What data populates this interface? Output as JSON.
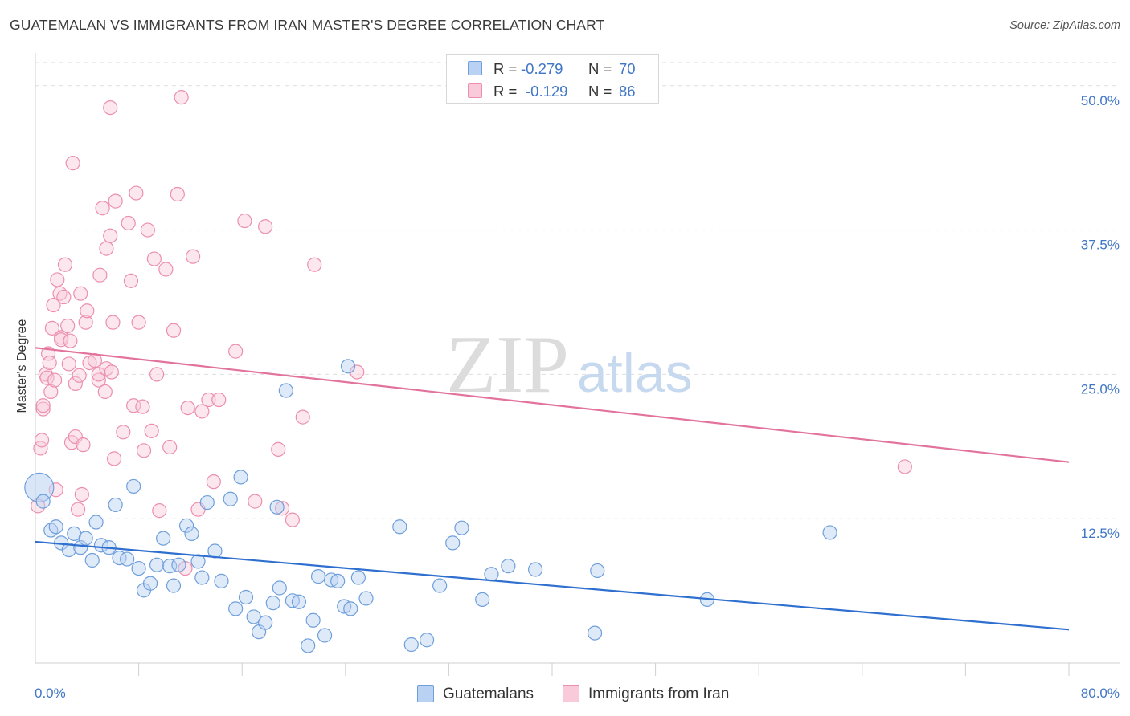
{
  "chart_data": {
    "type": "scatter",
    "title": "GUATEMALAN VS IMMIGRANTS FROM IRAN MASTER'S DEGREE CORRELATION CHART",
    "source": "Source: ZipAtlas.com",
    "xlabel": "",
    "ylabel": "Master's Degree",
    "xlim": [
      0,
      80
    ],
    "ylim": [
      0,
      52
    ],
    "x_tick_labels": [
      "0.0%",
      "80.0%"
    ],
    "y_ticks": [
      12.5,
      25.0,
      37.5,
      50.0
    ],
    "y_tick_labels": [
      "12.5%",
      "25.0%",
      "37.5%",
      "50.0%"
    ],
    "watermark": "ZIPatlas",
    "series": [
      {
        "name": "Guatemalans",
        "color": "#6f9fdb",
        "fill": "#b9d1f2",
        "R": "-0.279",
        "N": "70",
        "trend": {
          "x": [
            0,
            80
          ],
          "y": [
            10.5,
            2.9
          ]
        },
        "points": [
          [
            0.3,
            15.2
          ],
          [
            0.6,
            14.0
          ],
          [
            1.2,
            11.5
          ],
          [
            1.6,
            11.8
          ],
          [
            2.0,
            10.4
          ],
          [
            2.6,
            9.8
          ],
          [
            3.0,
            11.2
          ],
          [
            3.5,
            10.0
          ],
          [
            3.9,
            10.8
          ],
          [
            4.4,
            8.9
          ],
          [
            4.7,
            12.2
          ],
          [
            5.1,
            10.2
          ],
          [
            5.7,
            10.0
          ],
          [
            6.2,
            13.7
          ],
          [
            6.5,
            9.1
          ],
          [
            7.1,
            9.0
          ],
          [
            7.6,
            15.3
          ],
          [
            8.0,
            8.2
          ],
          [
            8.4,
            6.3
          ],
          [
            8.9,
            6.9
          ],
          [
            9.4,
            8.5
          ],
          [
            9.9,
            10.8
          ],
          [
            10.4,
            8.4
          ],
          [
            10.7,
            6.7
          ],
          [
            11.1,
            8.5
          ],
          [
            11.7,
            11.9
          ],
          [
            12.1,
            11.2
          ],
          [
            12.6,
            8.8
          ],
          [
            12.9,
            7.4
          ],
          [
            13.3,
            13.9
          ],
          [
            13.9,
            9.7
          ],
          [
            14.4,
            7.1
          ],
          [
            15.1,
            14.2
          ],
          [
            15.5,
            4.7
          ],
          [
            15.9,
            16.1
          ],
          [
            16.3,
            5.7
          ],
          [
            16.9,
            4.0
          ],
          [
            17.3,
            2.7
          ],
          [
            17.8,
            3.5
          ],
          [
            18.4,
            5.2
          ],
          [
            18.7,
            13.5
          ],
          [
            18.9,
            6.5
          ],
          [
            19.4,
            23.6
          ],
          [
            19.9,
            5.4
          ],
          [
            20.4,
            5.3
          ],
          [
            21.1,
            1.5
          ],
          [
            21.5,
            3.7
          ],
          [
            21.9,
            7.5
          ],
          [
            22.4,
            2.4
          ],
          [
            22.9,
            7.2
          ],
          [
            23.4,
            7.1
          ],
          [
            23.9,
            4.9
          ],
          [
            24.4,
            4.7
          ],
          [
            25.0,
            7.4
          ],
          [
            25.6,
            5.6
          ],
          [
            24.2,
            25.7
          ],
          [
            28.2,
            11.8
          ],
          [
            29.1,
            1.6
          ],
          [
            30.3,
            2.0
          ],
          [
            31.3,
            6.7
          ],
          [
            32.3,
            10.4
          ],
          [
            33.0,
            11.7
          ],
          [
            34.6,
            5.5
          ],
          [
            35.3,
            7.7
          ],
          [
            36.6,
            8.4
          ],
          [
            38.7,
            8.1
          ],
          [
            43.5,
            8.0
          ],
          [
            43.3,
            2.6
          ],
          [
            52.0,
            5.5
          ],
          [
            61.5,
            11.3
          ]
        ]
      },
      {
        "name": "Immigrants from Iran",
        "color": "#ec8fae",
        "fill": "#f9cad9",
        "R": "-0.129",
        "N": "86",
        "trend": {
          "x": [
            0,
            80
          ],
          "y": [
            27.3,
            17.4
          ]
        },
        "points": [
          [
            0.2,
            13.6
          ],
          [
            0.4,
            18.6
          ],
          [
            0.5,
            19.3
          ],
          [
            0.6,
            22.0
          ],
          [
            0.6,
            22.3
          ],
          [
            0.8,
            25.0
          ],
          [
            0.9,
            24.7
          ],
          [
            1.0,
            26.8
          ],
          [
            1.1,
            26.0
          ],
          [
            1.2,
            23.5
          ],
          [
            1.3,
            29.0
          ],
          [
            1.4,
            31.0
          ],
          [
            1.6,
            15.0
          ],
          [
            1.7,
            33.2
          ],
          [
            1.9,
            32.0
          ],
          [
            2.0,
            28.2
          ],
          [
            2.0,
            28.0
          ],
          [
            2.2,
            31.7
          ],
          [
            2.3,
            34.5
          ],
          [
            2.5,
            29.2
          ],
          [
            2.6,
            25.9
          ],
          [
            2.7,
            27.9
          ],
          [
            2.8,
            19.1
          ],
          [
            2.9,
            43.3
          ],
          [
            3.1,
            19.6
          ],
          [
            3.1,
            24.2
          ],
          [
            3.3,
            13.3
          ],
          [
            3.5,
            32.0
          ],
          [
            3.6,
            14.6
          ],
          [
            3.7,
            18.9
          ],
          [
            3.9,
            29.5
          ],
          [
            4.0,
            30.5
          ],
          [
            4.2,
            26.0
          ],
          [
            4.6,
            26.2
          ],
          [
            4.9,
            24.5
          ],
          [
            4.9,
            25.0
          ],
          [
            5.0,
            33.6
          ],
          [
            5.2,
            39.4
          ],
          [
            5.4,
            23.5
          ],
          [
            5.5,
            25.5
          ],
          [
            5.5,
            35.9
          ],
          [
            5.8,
            37.0
          ],
          [
            5.9,
            25.2
          ],
          [
            6.0,
            29.5
          ],
          [
            5.8,
            48.1
          ],
          [
            6.1,
            17.7
          ],
          [
            6.2,
            40.0
          ],
          [
            6.8,
            20.0
          ],
          [
            7.2,
            38.1
          ],
          [
            7.4,
            33.1
          ],
          [
            7.6,
            22.3
          ],
          [
            7.8,
            40.7
          ],
          [
            8.0,
            29.5
          ],
          [
            8.3,
            22.2
          ],
          [
            8.4,
            18.4
          ],
          [
            8.7,
            37.5
          ],
          [
            9.0,
            20.1
          ],
          [
            9.2,
            35.0
          ],
          [
            9.4,
            25.0
          ],
          [
            9.6,
            13.2
          ],
          [
            10.1,
            34.1
          ],
          [
            10.4,
            18.7
          ],
          [
            10.7,
            28.8
          ],
          [
            11.0,
            40.6
          ],
          [
            11.3,
            49.0
          ],
          [
            11.6,
            8.2
          ],
          [
            11.8,
            22.1
          ],
          [
            12.2,
            35.2
          ],
          [
            12.6,
            13.3
          ],
          [
            12.9,
            21.8
          ],
          [
            13.4,
            22.8
          ],
          [
            13.8,
            15.7
          ],
          [
            14.2,
            22.8
          ],
          [
            15.5,
            27.0
          ],
          [
            16.2,
            38.3
          ],
          [
            17.0,
            14.0
          ],
          [
            17.8,
            37.8
          ],
          [
            18.8,
            18.5
          ],
          [
            19.1,
            13.4
          ],
          [
            19.9,
            12.4
          ],
          [
            20.7,
            21.3
          ],
          [
            21.6,
            34.5
          ],
          [
            24.9,
            25.2
          ],
          [
            67.3,
            17.0
          ],
          [
            3.4,
            24.9
          ],
          [
            1.5,
            24.5
          ]
        ]
      }
    ]
  }
}
